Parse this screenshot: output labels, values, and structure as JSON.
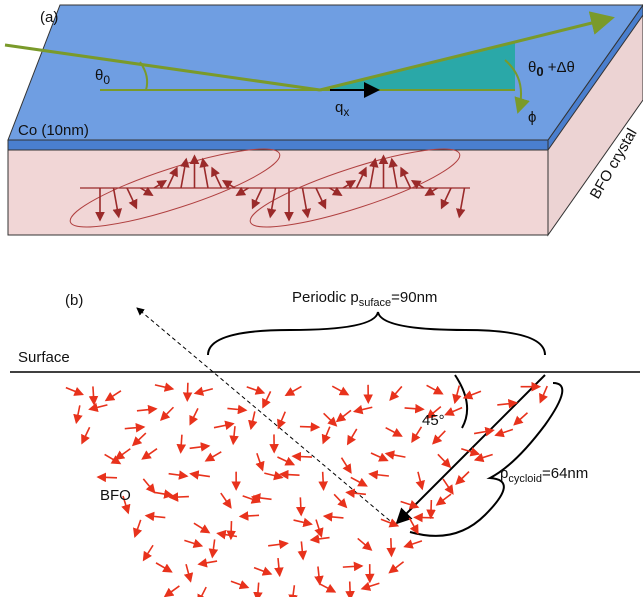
{
  "panel_a": {
    "label": "(a)",
    "theta0": {
      "main": "θ",
      "sub": "0"
    },
    "qx": {
      "main": "q",
      "sub": "x"
    },
    "theta_out": {
      "main": "θ",
      "sub": "0",
      "rest": " +Δθ"
    },
    "phi": "ϕ",
    "co_layer": "Co (10nm)",
    "crystal": "BFO crystal"
  },
  "panel_b": {
    "label": "(b)",
    "periodic": {
      "main": "Periodic p",
      "sub": "suface",
      "rest": "=90nm"
    },
    "surface": "Surface",
    "angle": "45°",
    "cycloid": {
      "main": "p",
      "sub": "cycloid",
      "rest": "=64nm"
    },
    "material": "BFO"
  }
}
